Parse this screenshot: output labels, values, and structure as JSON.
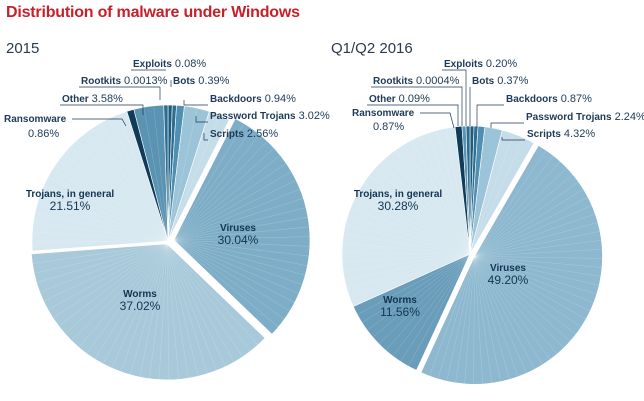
{
  "title": "Distribution of malware under Windows",
  "chart_data": [
    {
      "type": "pie",
      "title": "2015",
      "slices": [
        {
          "label": "Exploits",
          "value_text": "0.08%",
          "value": 0.08,
          "color": "#1e5b7d"
        },
        {
          "label": "Bots",
          "value_text": "0.39%",
          "value": 0.39,
          "color": "#2c6e91"
        },
        {
          "label": "Backdoors",
          "value_text": "0.94%",
          "value": 0.94,
          "color": "#4f8fb1"
        },
        {
          "label": "Password Trojans",
          "value_text": "3.02%",
          "value": 3.02,
          "color": "#9cc4d8"
        },
        {
          "label": "Scripts",
          "value_text": "2.56%",
          "value": 2.56,
          "color": "#c5dde9"
        },
        {
          "label": "Viruses",
          "value_text": "30.04%",
          "value": 30.04,
          "color": "#7eaec7"
        },
        {
          "label": "Worms",
          "value_text": "37.02%",
          "value": 37.02,
          "color": "#a8c9da"
        },
        {
          "label": "Trojans, in general",
          "value_text": "21.51%",
          "value": 21.51,
          "color": "#d7e8f0"
        },
        {
          "label": "Ransomware",
          "value_text": "0.86%",
          "value": 0.86,
          "color": "#0f3d59"
        },
        {
          "label": "Other",
          "value_text": "3.58%",
          "value": 3.58,
          "color": "#5b93b2"
        },
        {
          "label": "Rootkits",
          "value_text": "0.0013%",
          "value": 0.0013,
          "color": "#2c6e91"
        }
      ]
    },
    {
      "type": "pie",
      "title": "Q1/Q2 2016",
      "slices": [
        {
          "label": "Exploits",
          "value_text": "0.20%",
          "value": 0.2,
          "color": "#1e5b7d"
        },
        {
          "label": "Bots",
          "value_text": "0.37%",
          "value": 0.37,
          "color": "#2c6e91"
        },
        {
          "label": "Backdoors",
          "value_text": "0.87%",
          "value": 0.87,
          "color": "#4f8fb1"
        },
        {
          "label": "Password Trojans",
          "value_text": "2.24%",
          "value": 2.24,
          "color": "#9cc4d8"
        },
        {
          "label": "Scripts",
          "value_text": "4.32%",
          "value": 4.32,
          "color": "#c5dde9"
        },
        {
          "label": "Viruses",
          "value_text": "49.20%",
          "value": 49.2,
          "color": "#8db8cf"
        },
        {
          "label": "Worms",
          "value_text": "11.56%",
          "value": 11.56,
          "color": "#6a9dba"
        },
        {
          "label": "Trojans, in general",
          "value_text": "30.28%",
          "value": 30.28,
          "color": "#d7e8f0"
        },
        {
          "label": "Ransomware",
          "value_text": "0.87%",
          "value": 0.87,
          "color": "#0f3d59"
        },
        {
          "label": "Other",
          "value_text": "0.09%",
          "value": 0.09,
          "color": "#5b93b2"
        },
        {
          "label": "Rootkits",
          "value_text": "0.0004%",
          "value": 0.0004,
          "color": "#2c6e91"
        }
      ]
    }
  ]
}
